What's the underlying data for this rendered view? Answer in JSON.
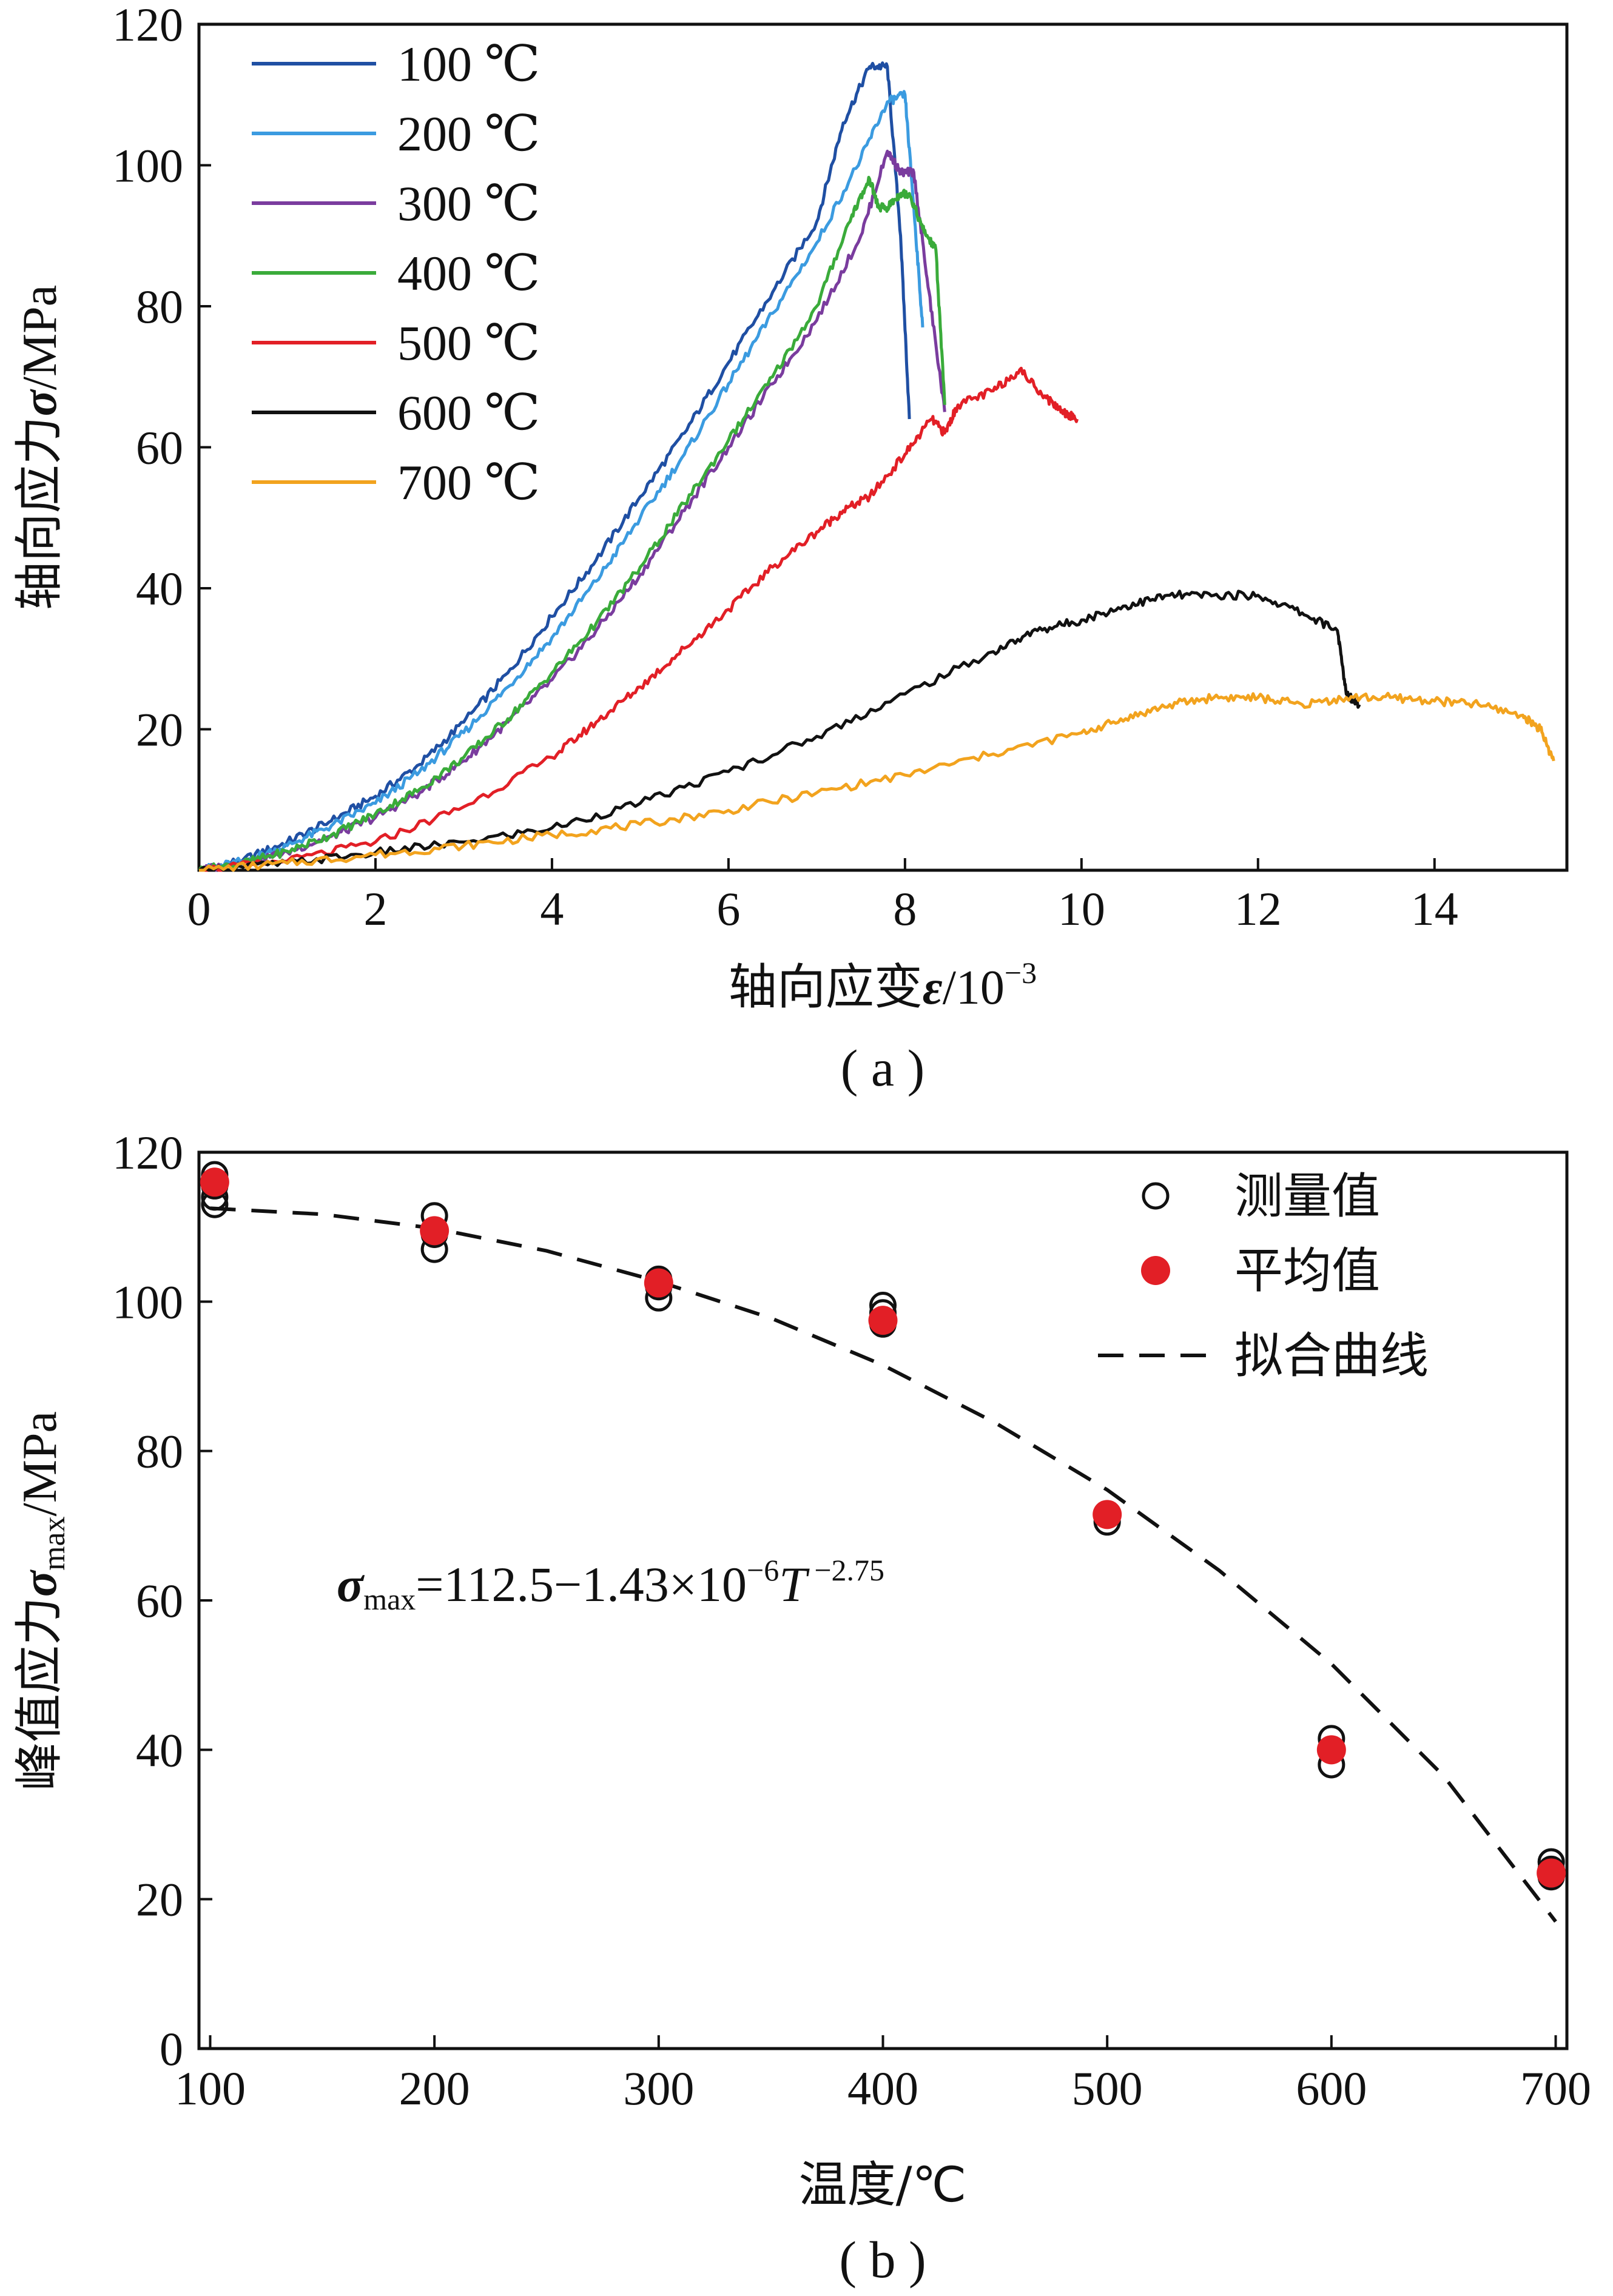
{
  "chart_data": [
    {
      "type": "line",
      "caption": "( a )",
      "xlabel_main": "轴向应变",
      "xlabel_symbol": "ε",
      "xlabel_unit": "/10",
      "xlabel_exp": "−3",
      "ylabel_main": "轴向应力",
      "ylabel_symbol": "σ",
      "ylabel_unit": "/MPa",
      "xlim": [
        0,
        15.5
      ],
      "ylim": [
        0,
        120
      ],
      "xticks": [
        0,
        2,
        4,
        6,
        8,
        10,
        12,
        14
      ],
      "yticks": [
        20,
        40,
        60,
        80,
        100,
        120
      ],
      "legend_position": "top-left",
      "series": [
        {
          "name": "100 ℃",
          "color": "#1f4fa3",
          "x": [
            0,
            0.5,
            1,
            1.5,
            2,
            2.5,
            3,
            3.5,
            4,
            4.5,
            5,
            5.5,
            6,
            6.5,
            7,
            7.3,
            7.6,
            7.8,
            7.95,
            8.05
          ],
          "y": [
            0,
            1.5,
            4,
            7,
            10.5,
            15,
            21,
            28,
            36,
            44,
            53,
            62,
            72,
            82,
            92,
            106,
            114,
            114,
            90,
            64
          ]
        },
        {
          "name": "200 ℃",
          "color": "#3b9be0",
          "x": [
            0,
            0.5,
            1,
            1.5,
            2,
            2.5,
            3,
            3.5,
            4,
            4.5,
            5,
            5.5,
            6,
            6.5,
            7,
            7.5,
            7.8,
            8.0,
            8.1,
            8.2
          ],
          "y": [
            0,
            1.3,
            3.5,
            6.3,
            9.5,
            14,
            19.5,
            26,
            33,
            41,
            50,
            59,
            69,
            79,
            89,
            101,
            109,
            110,
            94,
            77
          ]
        },
        {
          "name": "300 ℃",
          "color": "#7a3c9e",
          "x": [
            0,
            0.5,
            1,
            1.5,
            2,
            2.5,
            3,
            3.5,
            4,
            4.5,
            5,
            5.5,
            6,
            6.5,
            7,
            7.5,
            7.8,
            7.95,
            8.1,
            8.25,
            8.45
          ],
          "y": [
            0,
            1,
            2.6,
            4.8,
            7.5,
            11,
            15.5,
            21,
            27,
            34,
            42,
            51,
            60,
            69,
            78,
            90,
            102,
            99,
            99,
            84,
            65
          ]
        },
        {
          "name": "400 ℃",
          "color": "#3aab3a",
          "x": [
            0,
            0.5,
            1,
            1.5,
            2,
            2.5,
            3,
            3.5,
            4,
            4.5,
            5,
            5.5,
            6,
            6.5,
            7,
            7.4,
            7.6,
            7.7,
            7.8,
            7.95,
            8.05,
            8.2,
            8.35,
            8.45
          ],
          "y": [
            0,
            1,
            2.7,
            5,
            8,
            11.5,
            16,
            21.5,
            28,
            35,
            43,
            52,
            61,
            70,
            80,
            93,
            98,
            94,
            94,
            96,
            96,
            91,
            88,
            66
          ]
        },
        {
          "name": "500 ℃",
          "color": "#e21f26",
          "x": [
            0,
            1,
            2,
            3,
            4,
            4.5,
            5,
            5.5,
            6,
            6.5,
            7,
            7.3,
            7.6,
            8,
            8.3,
            8.45,
            8.6,
            9,
            9.3,
            9.6,
            9.8,
            9.95
          ],
          "y": [
            0,
            1.3,
            4,
            9,
            16,
            21,
            26,
            31.5,
            37,
            43,
            48,
            51,
            53,
            59,
            64,
            62,
            66,
            68,
            71,
            67,
            65,
            64
          ]
        },
        {
          "name": "600 ℃",
          "color": "#111111",
          "x": [
            0,
            1,
            2,
            3,
            4,
            5,
            6,
            7,
            8,
            9,
            9.5,
            10,
            10.5,
            11,
            11.5,
            12,
            12.5,
            12.9,
            13.0,
            13.15
          ],
          "y": [
            0,
            1,
            2.5,
            4,
            6,
            9.5,
            14,
            19,
            25,
            31,
            34,
            35.5,
            37.5,
            39,
            39,
            39,
            36.5,
            34,
            25,
            23.5
          ]
        },
        {
          "name": "700 ℃",
          "color": "#f2a31e",
          "x": [
            0,
            1,
            2,
            3,
            4,
            5,
            6,
            7,
            8,
            9,
            10,
            10.5,
            11,
            11.5,
            12,
            12.5,
            13,
            13.5,
            14,
            14.5,
            15,
            15.2,
            15.35
          ],
          "y": [
            0,
            1,
            2.2,
            3.5,
            5,
            6.5,
            8.5,
            11,
            13.5,
            16.5,
            19.5,
            21.5,
            23.5,
            24.5,
            24.5,
            23.5,
            24.5,
            24.5,
            24,
            23.5,
            22,
            20,
            15.5
          ]
        }
      ]
    },
    {
      "type": "scatter",
      "caption": "( b )",
      "xlabel": "温度/℃",
      "ylabel_main": "峰值应力",
      "ylabel_symbol": "σ",
      "ylabel_sub": "max",
      "ylabel_unit": "/MPa",
      "xlim": [
        95,
        705
      ],
      "ylim": [
        0,
        120
      ],
      "xticks": [
        100,
        200,
        300,
        400,
        500,
        600,
        700
      ],
      "yticks": [
        0,
        20,
        40,
        60,
        80,
        100,
        120
      ],
      "legend_position": "top-right",
      "legend": {
        "measured": "测量值",
        "mean": "平均值",
        "fit": "拟合曲线"
      },
      "equation": {
        "symbol": "σ",
        "sub": "max",
        "body": "=112.5−1.43×10",
        "exp1": "−6",
        "var": "T",
        "exp2": " −2.75"
      },
      "measured": {
        "x": [
          102,
          102,
          102,
          102,
          200,
          200,
          200,
          300,
          300,
          300,
          400,
          400,
          400,
          500,
          500,
          600,
          600,
          600,
          698,
          698,
          698
        ],
        "y": [
          117,
          115.5,
          114,
          113,
          111.5,
          109,
          107,
          103,
          102,
          100.5,
          99.5,
          98.5,
          97,
          71.5,
          70.5,
          41.5,
          40,
          38,
          25,
          24,
          23
        ]
      },
      "mean": {
        "x": [
          102,
          200,
          300,
          400,
          500,
          600,
          698
        ],
        "y": [
          116,
          109.5,
          102.5,
          97.5,
          71.5,
          40,
          23.5
        ]
      },
      "fit": {
        "color": "#111111",
        "x": [
          100,
          150,
          200,
          250,
          300,
          350,
          400,
          450,
          500,
          550,
          600,
          650,
          700
        ],
        "y": [
          112.5,
          111.7,
          109.8,
          106.8,
          102.7,
          97.8,
          91.5,
          83.8,
          74.8,
          64.0,
          51.5,
          36.5,
          17.0
        ]
      },
      "colors": {
        "measured_stroke": "#111111",
        "mean_fill": "#e21f26"
      }
    }
  ]
}
